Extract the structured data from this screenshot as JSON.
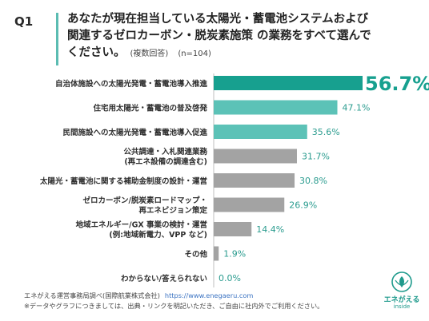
{
  "question": {
    "number": "Q1",
    "line1": "あなたが現在担当している太陽光・蓄電池システムおよび",
    "line2": "関連するゼロカーボン・脱炭素施策 の業務をすべて選んで",
    "line3": "ください。",
    "note": "(複数回答)",
    "n": "(n=104)"
  },
  "chart_data": {
    "type": "bar",
    "orientation": "horizontal",
    "categories": [
      [
        "自治体施設への太陽光発電・蓄電池導入推進"
      ],
      [
        "住宅用太陽光・蓄電池の普及啓発"
      ],
      [
        "民間施設への太陽光発電・蓄電池導入促進"
      ],
      [
        "公共調達・入札関連業務",
        "(再エネ設備の調達含む)"
      ],
      [
        "太陽光・蓄電池に関する補助金制度の設計・運営"
      ],
      [
        "ゼロカーボン/脱炭素ロードマップ・",
        "再エネビジョン策定"
      ],
      [
        "地域エネルギー/GX 事業の検討・運営",
        "(例:地域新電力、VPP など)"
      ],
      [
        "その他"
      ],
      [
        "わからない/答えられない"
      ]
    ],
    "values": [
      56.7,
      47.1,
      35.6,
      31.7,
      30.8,
      26.9,
      14.4,
      1.9,
      0.0
    ],
    "value_labels": [
      "56.7%",
      "47.1%",
      "35.6%",
      "31.7%",
      "30.8%",
      "26.9%",
      "14.4%",
      "1.9%",
      "0.0%"
    ],
    "colors": [
      "#17a08f",
      "#5cc2b7",
      "#5cc2b7",
      "#a3a3a3",
      "#a3a3a3",
      "#a3a3a3",
      "#a3a3a3",
      "#a3a3a3",
      "#a3a3a3"
    ],
    "label_colors": [
      "#17a08f",
      "#2b9c8f",
      "#2b9c8f",
      "#2b9c8f",
      "#2b9c8f",
      "#2b9c8f",
      "#2b9c8f",
      "#2b9c8f",
      "#2b9c8f"
    ],
    "xlim": [
      0,
      56.7
    ],
    "grid": false
  },
  "footer": {
    "line1": "エネがえる運営事務局調べ(国際航業株式会社)",
    "link": "https://www.enegaeru.com",
    "line2": "※データやグラフにつきましては、出典・リンクを明記いただき、ご自由に社内外でご利用ください。"
  },
  "logo": {
    "name": "エネがえる",
    "sub": "inside",
    "color": "#1e9a8c"
  }
}
